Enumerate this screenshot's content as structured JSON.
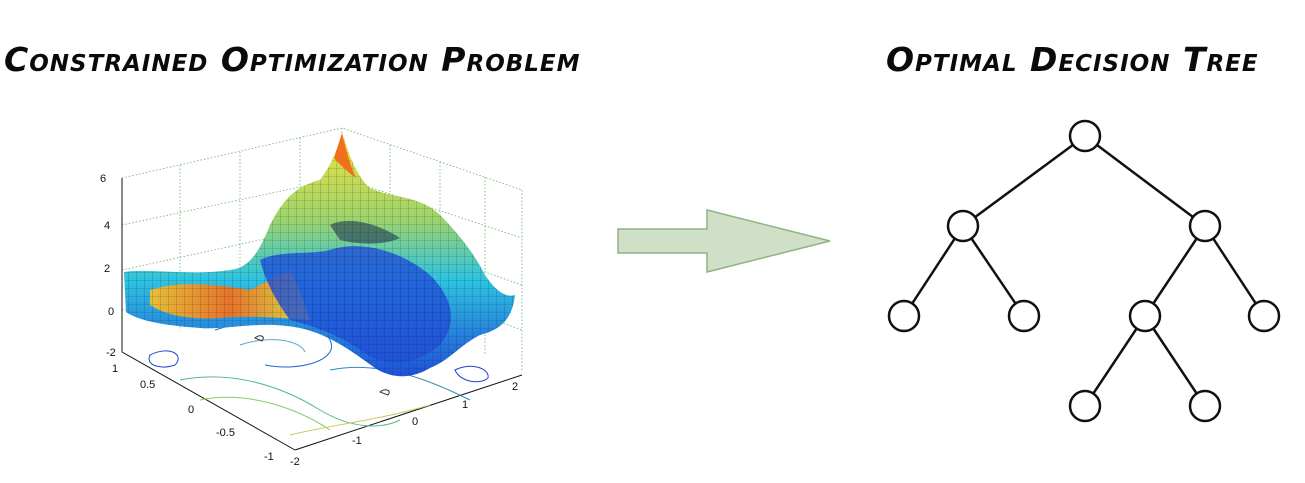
{
  "left_panel": {
    "title": "Constrained Optimization Problem",
    "z_ticks": [
      "6",
      "4",
      "2",
      "0",
      "-2"
    ],
    "y_ticks": [
      "1",
      "0.5",
      "0",
      "-0.5",
      "-1"
    ],
    "x_ticks": [
      "-2",
      "-1",
      "0",
      "1",
      "2"
    ]
  },
  "right_panel": {
    "title": "Optimal Decision Tree",
    "tree": {
      "nodes": [
        "root",
        "left",
        "right",
        "left-left",
        "left-right",
        "right-left",
        "right-right",
        "right-left-left",
        "right-left-right"
      ],
      "edges": [
        [
          "root",
          "left"
        ],
        [
          "root",
          "right"
        ],
        [
          "left",
          "left-left"
        ],
        [
          "left",
          "left-right"
        ],
        [
          "right",
          "right-left"
        ],
        [
          "right",
          "right-right"
        ],
        [
          "right-left",
          "right-left-left"
        ],
        [
          "right-left",
          "right-left-right"
        ]
      ]
    }
  },
  "colors": {
    "arrow_fill": "#cfe0c6",
    "arrow_stroke": "#8fb383",
    "surface_low": "#1f4fd8",
    "surface_mid": "#2ec4e0",
    "surface_high": "#f0e23a",
    "surface_peak": "#f07020"
  },
  "icons": {
    "arrow": "right-arrow-icon"
  }
}
